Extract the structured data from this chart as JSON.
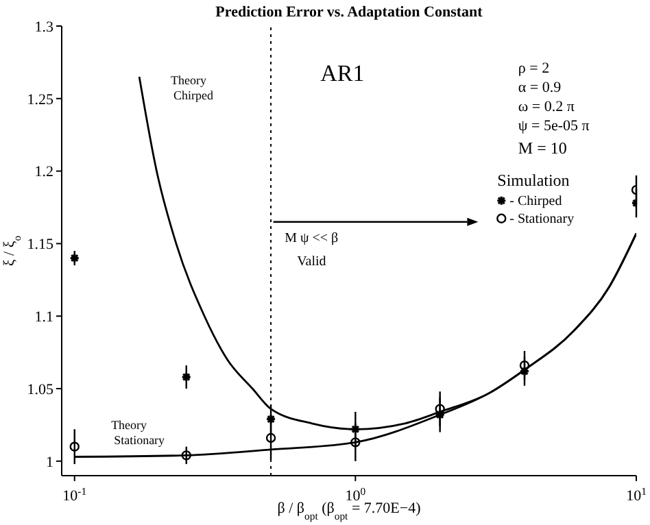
{
  "chart_data": {
    "type": "scatter",
    "title": "Prediction Error vs. Adaptation Constant",
    "xlabel": "β / β$_{opt}$     (β$_{opt}$ = 7.70E−4)",
    "ylabel": "ξ / ξ$_{o}$",
    "legend_title": "Simulation",
    "legend": "top right",
    "log": "x",
    "xlim": [
      0.09,
      10
    ],
    "xticks": [
      {
        "value": 0.1,
        "label": "10$^{-1}$"
      },
      {
        "value": 1,
        "label": "10$^{0}$"
      },
      {
        "value": 10,
        "label": "10$^{1}$"
      }
    ],
    "ylim": [
      0.99,
      1.3
    ],
    "yticks": [
      1,
      1.05,
      1.1,
      1.15,
      1.2,
      1.25,
      1.3
    ],
    "ref_lines": [
      {
        "axis": "x",
        "value": 0.5,
        "line_style": "dotted",
        "color": "#000000"
      }
    ],
    "annotations": [
      "AR1",
      "ρ = 2",
      "α = 0.9",
      "ω = 0.2 π",
      "ψ = 5e-05 π",
      "M = 10",
      "M ψ << β",
      "Valid",
      "Theory Chirped",
      "Theory Stationary"
    ],
    "series": [
      {
        "type": "line",
        "color": "#000000",
        "marker": "none",
        "line_style": "solid",
        "x": [
          0.17,
          0.196,
          0.23,
          0.29,
          0.35,
          0.43,
          0.5,
          0.7,
          1,
          1.5,
          2,
          3,
          4,
          6,
          8,
          10
        ],
        "values": [
          1.265,
          1.2,
          1.15,
          1.1,
          1.07,
          1.05,
          1.036,
          1.026,
          1.022,
          1.026,
          1.034,
          1.047,
          1.063,
          1.09,
          1.12,
          1.157
        ]
      },
      {
        "type": "line",
        "color": "#000000",
        "marker": "none",
        "line_style": "solid",
        "x": [
          0.1,
          0.25,
          0.5,
          1,
          2,
          3,
          4,
          6,
          8,
          10
        ],
        "values": [
          1.003,
          1.004,
          1.008,
          1.013,
          1.032,
          1.047,
          1.063,
          1.09,
          1.12,
          1.157
        ]
      },
      {
        "name": "- Chirped",
        "color": "#000000",
        "marker": "cross",
        "x": [
          0.1,
          0.25,
          0.5,
          1,
          2,
          4,
          10
        ],
        "values": [
          1.14,
          1.058,
          1.029,
          1.022,
          1.032,
          1.062,
          1.178
        ],
        "errors": [
          0.005,
          0.008,
          0.01,
          0.012,
          0.012,
          0.01,
          0.01
        ]
      },
      {
        "name": "- Stationary",
        "color": "#000000",
        "marker": "circle",
        "x": [
          0.1,
          0.25,
          0.5,
          1,
          2,
          4,
          10
        ],
        "values": [
          1.01,
          1.004,
          1.016,
          1.013,
          1.036,
          1.066,
          1.187
        ],
        "errors": [
          0.012,
          0.006,
          0.015,
          0.013,
          0.012,
          0.01,
          0.01
        ]
      }
    ]
  }
}
